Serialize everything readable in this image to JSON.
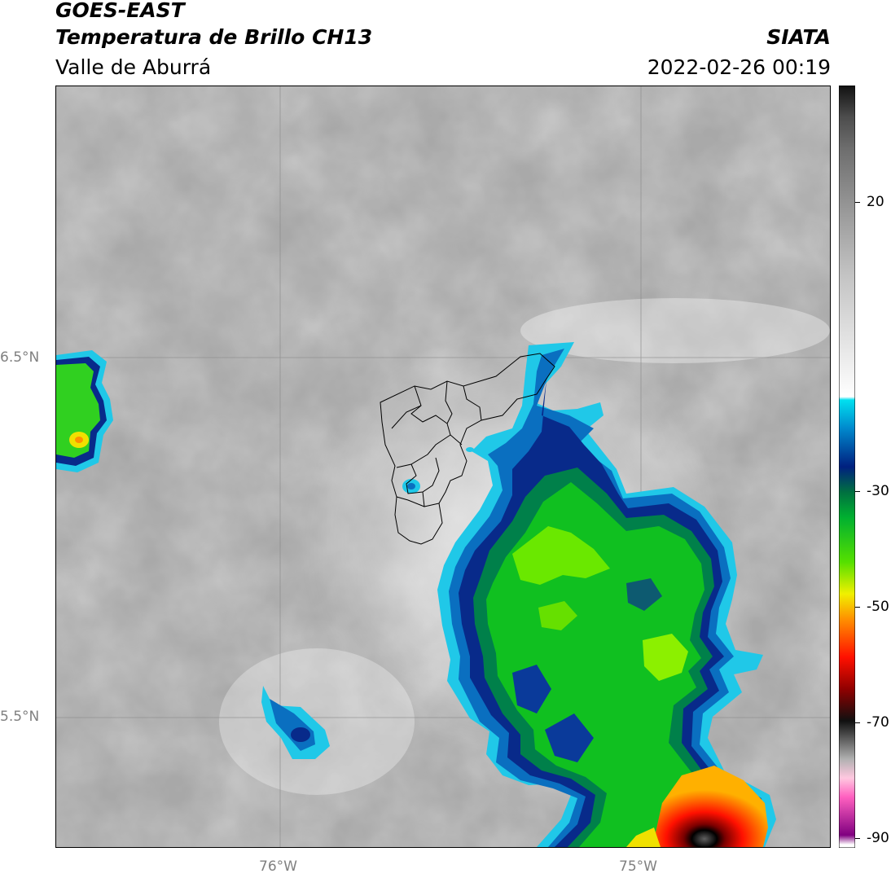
{
  "header": {
    "satellite": "GOES-EAST",
    "product": "Temperatura de Brillo CH13",
    "region": "Valle de Aburrá",
    "agency": "SIATA",
    "datetime": "2022-02-26 00:19"
  },
  "map": {
    "lat_labels": [
      "6.5°N",
      "5.5°N"
    ],
    "lon_labels": [
      "76°W",
      "75°W"
    ]
  },
  "colorbar": {
    "tick_labels": [
      "20",
      "-30",
      "-50",
      "-70",
      "-90"
    ],
    "stops": [
      {
        "v": 30,
        "c": "#111111"
      },
      {
        "v": 25,
        "c": "#4d4d4d"
      },
      {
        "v": 20,
        "c": "#6e6e6e"
      },
      {
        "v": 10,
        "c": "#9a9a9a"
      },
      {
        "v": 0,
        "c": "#c4c4c4"
      },
      {
        "v": -15,
        "c": "#f2f2f2"
      },
      {
        "v": -19,
        "c": "#ffffff"
      },
      {
        "v": -19.5,
        "c": "#00e0f0"
      },
      {
        "v": -24,
        "c": "#0088cc"
      },
      {
        "v": -30,
        "c": "#002080"
      },
      {
        "v": -34,
        "c": "#007040"
      },
      {
        "v": -38,
        "c": "#00b030"
      },
      {
        "v": -45,
        "c": "#55e000"
      },
      {
        "v": -50,
        "c": "#f0f000"
      },
      {
        "v": -54,
        "c": "#ff9000"
      },
      {
        "v": -60,
        "c": "#ff1000"
      },
      {
        "v": -65,
        "c": "#900000"
      },
      {
        "v": -70,
        "c": "#101010"
      },
      {
        "v": -76,
        "c": "#b0b0b0"
      },
      {
        "v": -79,
        "c": "#ffc8e0"
      },
      {
        "v": -82,
        "c": "#ff60c0"
      },
      {
        "v": -88,
        "c": "#800080"
      },
      {
        "v": -89.5,
        "c": "#ffffff"
      }
    ]
  }
}
